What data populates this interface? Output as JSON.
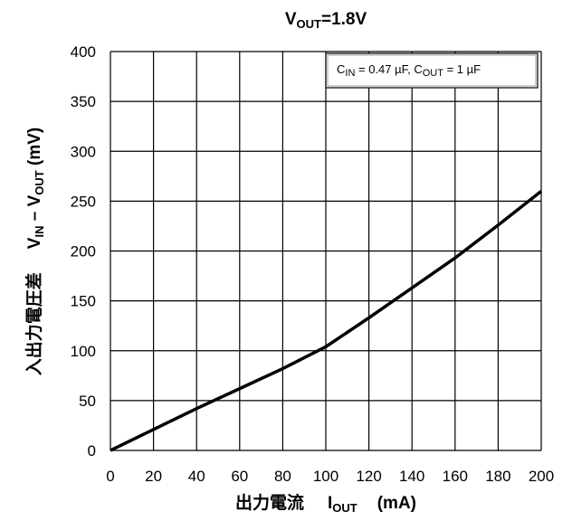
{
  "chart_data": {
    "type": "line",
    "title": [
      "V",
      "OUT",
      "=1.8V"
    ],
    "y_label": [
      "入出力電圧差",
      "V",
      "IN",
      " – V",
      "OUT",
      " (mV)"
    ],
    "x_label": [
      "出力電流",
      "I",
      "OUT",
      "(mA)"
    ],
    "annotation": [
      "C",
      "IN",
      " = 0.47 µF, C",
      "OUT",
      " = 1 µF"
    ],
    "x": [
      0,
      20,
      40,
      60,
      80,
      100,
      120,
      140,
      160,
      180,
      200
    ],
    "values": [
      0,
      21,
      42,
      62,
      82,
      104,
      133,
      163,
      193,
      226,
      260
    ],
    "color": "#000000",
    "xlim": [
      0,
      200
    ],
    "xticks": [
      0,
      20,
      40,
      60,
      80,
      100,
      120,
      140,
      160,
      180,
      200
    ],
    "ylim": [
      0,
      400
    ],
    "yticks": [
      0,
      50,
      100,
      150,
      200,
      250,
      300,
      350,
      400
    ],
    "grid": true
  }
}
